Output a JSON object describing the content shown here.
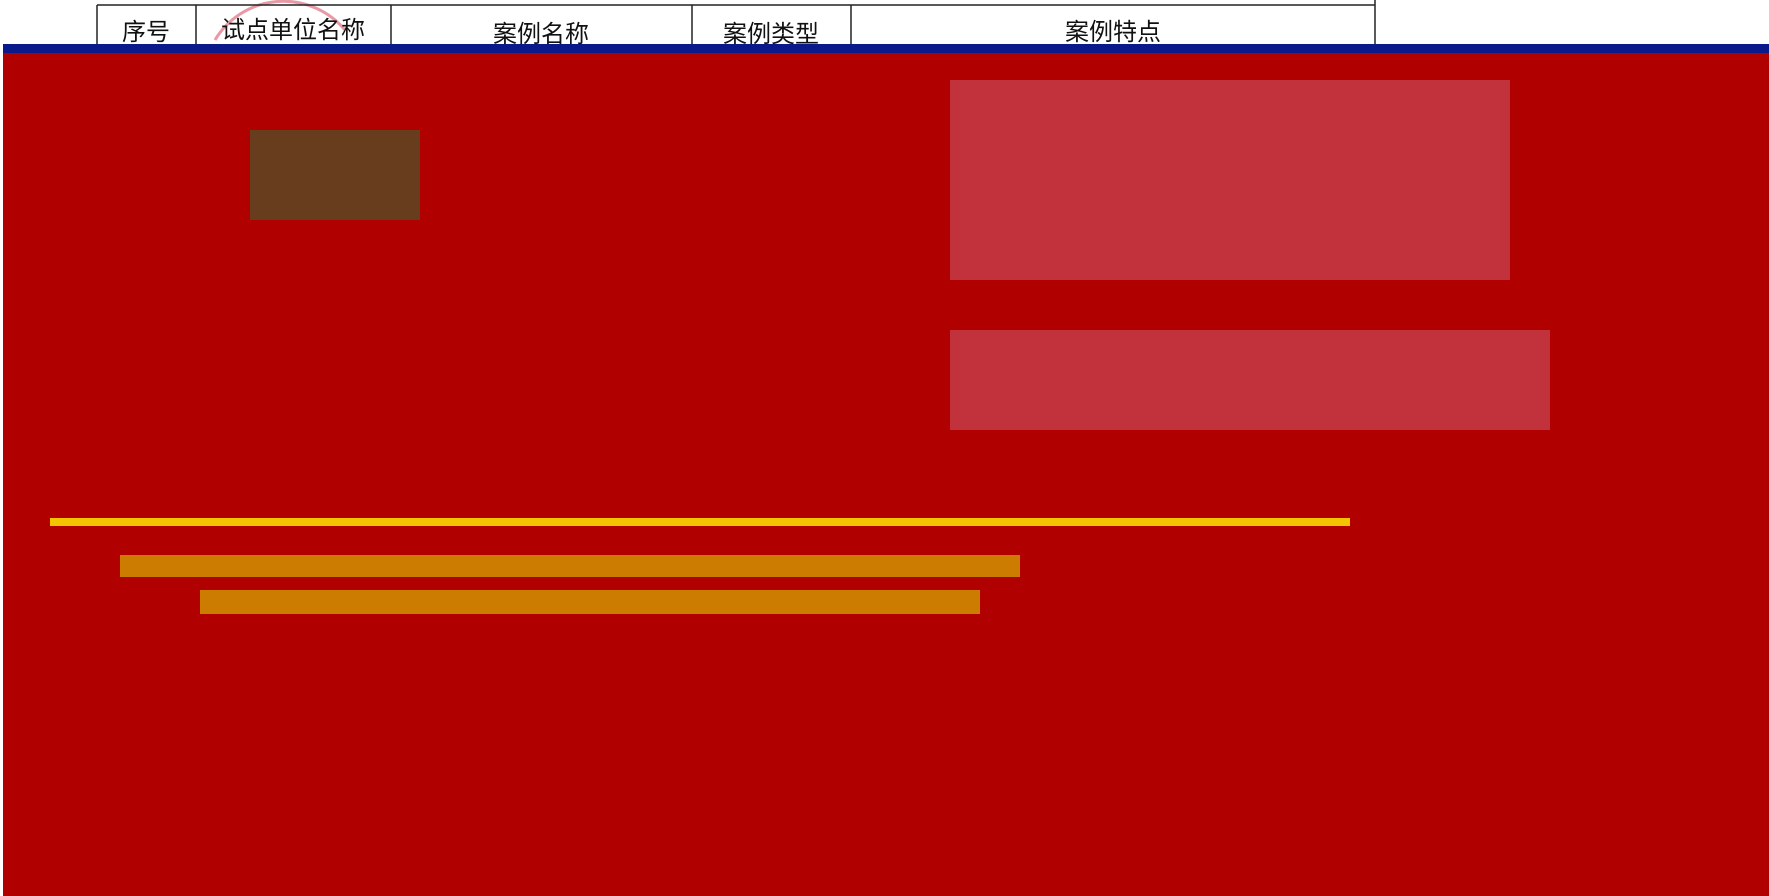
{
  "table": {
    "header": [
      "序号",
      "试点单位名称",
      "案例名称",
      "案例类型",
      "案例特点"
    ]
  }
}
